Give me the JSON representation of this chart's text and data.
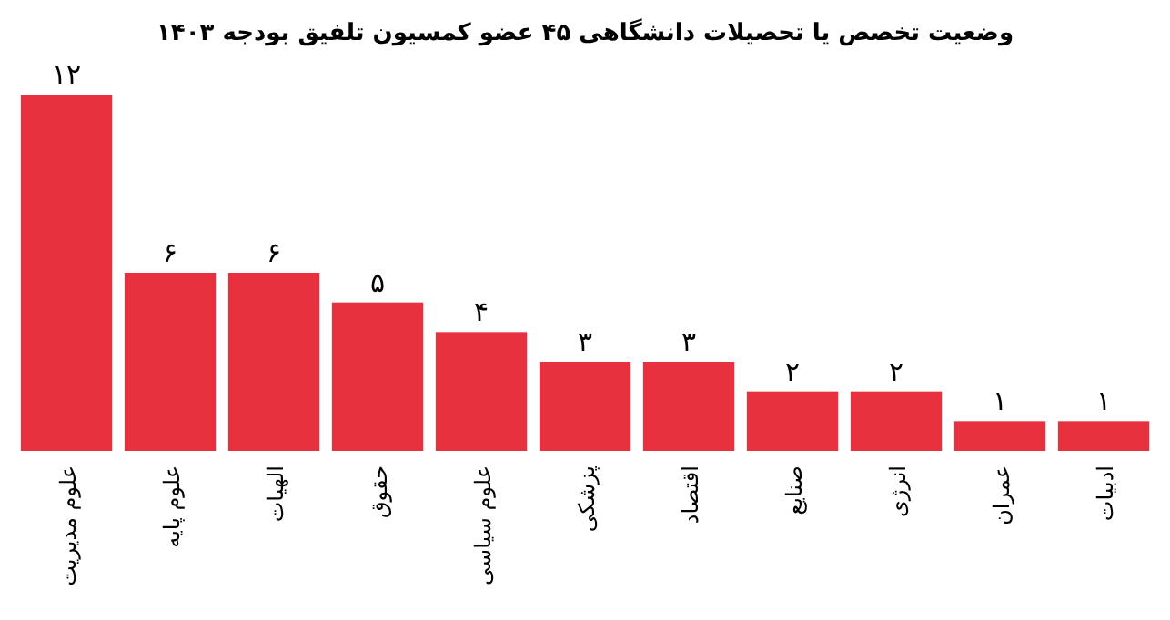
{
  "chart_data": {
    "type": "bar",
    "title": "وضعیت تخصص یا تحصیلات دانشگاهی ۴۵ عضو کمسیون تلفیق بودجه ۱۴۰۳",
    "categories": [
      "علوم مدیریت",
      "علوم پایه",
      "الهیات",
      "حقوق",
      "علوم سیاسی",
      "پزشکی",
      "اقتصاد",
      "صنایع",
      "انرژی",
      "عمران",
      "ادبیات"
    ],
    "values": [
      12,
      6,
      6,
      5,
      4,
      3,
      3,
      2,
      2,
      1,
      1
    ],
    "value_labels": [
      "۱۲",
      "۶",
      "۶",
      "۵",
      "۴",
      "۳",
      "۳",
      "۲",
      "۲",
      "۱",
      "۱"
    ],
    "color": "#e8313f"
  }
}
